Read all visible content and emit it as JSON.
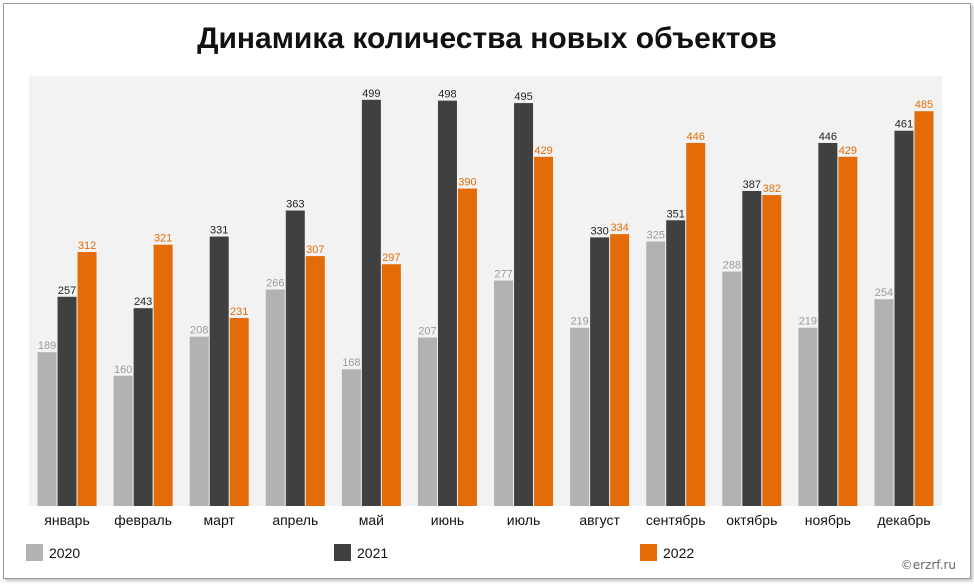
{
  "colors": {
    "2020": "#b2b2b2",
    "2021": "#404040",
    "2022": "#e36c09",
    "plot_bg": "#f2f2f2"
  },
  "watermark": "©erzrf.ru",
  "chart_data": {
    "type": "bar",
    "title": "Динамика количества новых объектов",
    "categories": [
      "январь",
      "февраль",
      "март",
      "апрель",
      "май",
      "июнь",
      "июль",
      "август",
      "сентябрь",
      "октябрь",
      "ноябрь",
      "декабрь"
    ],
    "series": [
      {
        "name": "2020",
        "values": [
          189,
          160,
          208,
          266,
          168,
          207,
          277,
          219,
          325,
          288,
          219,
          254
        ]
      },
      {
        "name": "2021",
        "values": [
          257,
          243,
          331,
          363,
          499,
          498,
          495,
          330,
          351,
          387,
          446,
          461
        ]
      },
      {
        "name": "2022",
        "values": [
          312,
          321,
          231,
          307,
          297,
          390,
          429,
          334,
          446,
          382,
          429,
          485
        ]
      }
    ],
    "xlabel": "",
    "ylabel": "",
    "ylim": [
      0,
      520
    ],
    "grid": false,
    "legend": "bottom",
    "data_labels": true
  }
}
